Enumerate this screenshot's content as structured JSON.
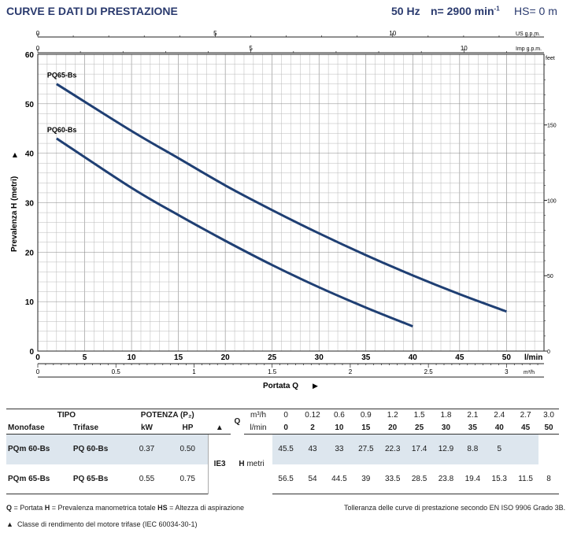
{
  "header": {
    "title": "CURVE E DATI DI PRESTAZIONE",
    "freq": "50 Hz",
    "speed_prefix": "n= 2900 min",
    "speed_sup": "-1",
    "hs": "HS= 0 m"
  },
  "chart_data": {
    "type": "line",
    "x": [
      2,
      10,
      15,
      20,
      25,
      30,
      35,
      40,
      45,
      50
    ],
    "xlabel": "Portata Q",
    "ylabel": "Prevalenza H (metri)",
    "xlim": [
      0,
      54
    ],
    "ylim": [
      0,
      60
    ],
    "x_unit": "l/min",
    "y_unit_right": "feet",
    "series": [
      {
        "name": "PQ65-Bs",
        "x": [
          2,
          10,
          15,
          20,
          25,
          30,
          35,
          40,
          45,
          50
        ],
        "values": [
          54,
          44.5,
          39,
          33.5,
          28.5,
          23.8,
          19.4,
          15.3,
          11.5,
          8
        ]
      },
      {
        "name": "PQ60-Bs",
        "x": [
          2,
          10,
          15,
          20,
          25,
          30,
          35,
          40
        ],
        "values": [
          43,
          33,
          27.5,
          22.3,
          17.4,
          12.9,
          8.8,
          5
        ]
      }
    ],
    "x_ticks": [
      "0",
      "5",
      "10",
      "15",
      "20",
      "25",
      "30",
      "35",
      "40",
      "45",
      "50"
    ],
    "y_ticks": [
      "0",
      "10",
      "20",
      "30",
      "40",
      "50",
      "60"
    ],
    "m3h_ticks": [
      "0",
      "0.5",
      "1",
      "1.5",
      "2",
      "2.5",
      "3"
    ],
    "m3h_unit": "m³/h",
    "us_ticks": [
      "0",
      "5",
      "10"
    ],
    "us_unit": "US g.p.m.",
    "imp_ticks": [
      "0",
      "5",
      "10"
    ],
    "imp_unit": "Imp g.p.m.",
    "feet_ticks": [
      "0",
      "50",
      "100",
      "150"
    ],
    "grid": true,
    "colors": {
      "curve": "#1f3f73",
      "grid": "#b8b8b8"
    }
  },
  "table": {
    "tipo": "TIPO",
    "monofase": "Monofase",
    "trifase": "Trifase",
    "potenza": "POTENZA (P₂)",
    "kw": "kW",
    "hp": "HP",
    "tri": "▲",
    "q": "Q",
    "m3h": "m³/h",
    "lmin": "l/min",
    "h": "H",
    "metri": "metri",
    "ie3": "IE3",
    "q_m3h": [
      "0",
      "0.12",
      "0.6",
      "0.9",
      "1.2",
      "1.5",
      "1.8",
      "2.1",
      "2.4",
      "2.7",
      "3.0"
    ],
    "q_lmin": [
      "0",
      "2",
      "10",
      "15",
      "20",
      "25",
      "30",
      "35",
      "40",
      "45",
      "50"
    ],
    "rows": [
      {
        "mono": "PQm 60-Bs",
        "tri": "PQ 60-Bs",
        "kw": "0.37",
        "hp": "0.50",
        "h": [
          "45.5",
          "43",
          "33",
          "27.5",
          "22.3",
          "17.4",
          "12.9",
          "8.8",
          "5",
          "",
          ""
        ]
      },
      {
        "mono": "PQm 65-Bs",
        "tri": "PQ 65-Bs",
        "kw": "0.55",
        "hp": "0.75",
        "h": [
          "56.5",
          "54",
          "44.5",
          "39",
          "33.5",
          "28.5",
          "23.8",
          "19.4",
          "15.3",
          "11.5",
          "8"
        ]
      }
    ]
  },
  "footer": {
    "legend_q": "Q",
    "legend_q_txt": " = Portata  ",
    "legend_h": "H",
    "legend_h_txt": " = Prevalenza manometrica totale  ",
    "legend_hs": "HS",
    "legend_hs_txt": " = Altezza di aspirazione",
    "tolerance": "Tolleranza delle curve di prestazione secondo EN ISO 9906 Grado 3B.",
    "ie3_note": "Classe di rendimento del motore trifase (IEC 60034-30-1)"
  }
}
